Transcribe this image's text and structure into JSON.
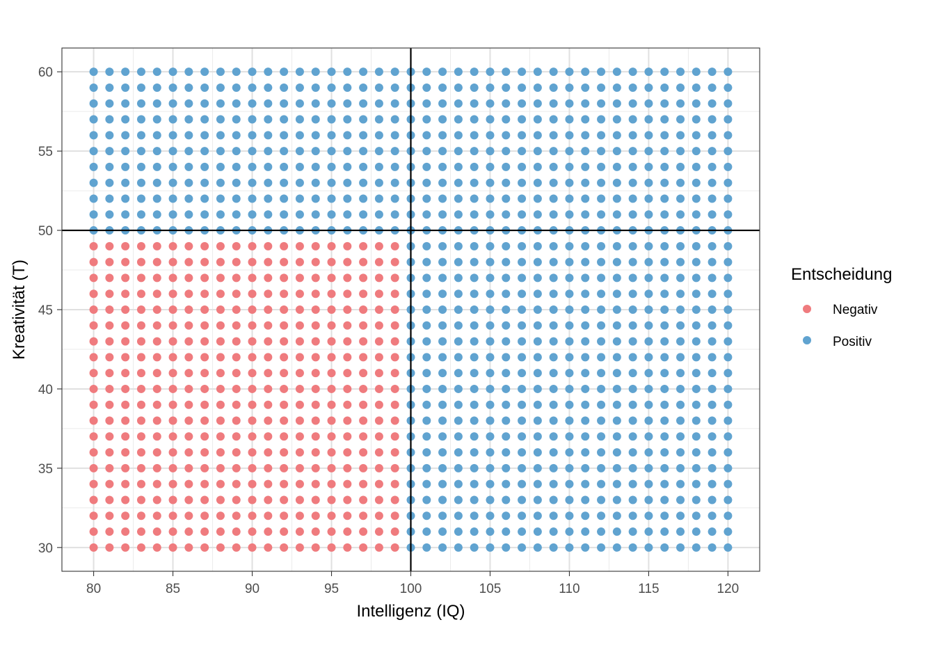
{
  "chart_data": {
    "type": "scatter",
    "xlabel": "Intelligenz (IQ)",
    "ylabel": "Kreativität (T)",
    "xlim": [
      78,
      122
    ],
    "ylim": [
      28.5,
      61.5
    ],
    "x_ticks": [
      80,
      85,
      90,
      95,
      100,
      105,
      110,
      115,
      120
    ],
    "y_ticks": [
      30,
      35,
      40,
      45,
      50,
      55,
      60
    ],
    "x_tick_labels": [
      "80",
      "85",
      "90",
      "95",
      "100",
      "105",
      "110",
      "115",
      "120"
    ],
    "y_tick_labels": [
      "30",
      "35",
      "40",
      "45",
      "50",
      "55",
      "60"
    ],
    "grid": true,
    "x_range": [
      80,
      120
    ],
    "y_range": [
      30,
      60
    ],
    "step": 1,
    "classification": "Negativ where x < 100 and y < 50, otherwise Positiv",
    "reference_lines": {
      "vertical_x": 100,
      "horizontal_y": 50
    },
    "legend": {
      "title": "Entscheidung",
      "placement": "right",
      "entries": [
        {
          "label": "Negativ",
          "color": "#ef7b7e"
        },
        {
          "label": "Positiv",
          "color": "#60a3d0"
        }
      ]
    },
    "series": [
      {
        "category": "Negativ",
        "color": "#ef7b7e"
      },
      {
        "category": "Positiv",
        "color": "#60a3d0"
      }
    ]
  }
}
